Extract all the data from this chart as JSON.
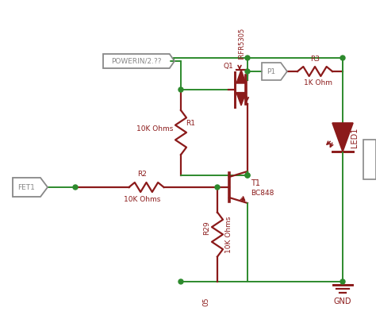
{
  "bg_color": "#ffffff",
  "wire_color": "#2d8a2d",
  "component_color": "#8b1a1a",
  "label_color": "#8b1a1a",
  "connector_color": "#888888",
  "node_color": "#2d8a2d",
  "components": {
    "R1": {
      "label": "R1",
      "sublabel": "10K Ohms"
    },
    "R2": {
      "label": "R2",
      "sublabel": "10K Ohms"
    },
    "R29": {
      "label": "R29",
      "sublabel": "10K Ohms"
    },
    "R3": {
      "label": "R3",
      "sublabel": "1K Ohm"
    },
    "T1": {
      "label": "T1",
      "sublabel": "BC848"
    },
    "Q1": {
      "label": "Q1",
      "sublabel": "IRFR5305"
    },
    "LED1": {
      "label": "LED1"
    },
    "P1": {
      "label": "P1"
    },
    "FET1": {
      "label": "FET1"
    },
    "GND": {
      "label": "GND"
    },
    "POWERIN": {
      "label": "POWERIN/2.??"
    },
    "05": {
      "label": "05"
    }
  }
}
